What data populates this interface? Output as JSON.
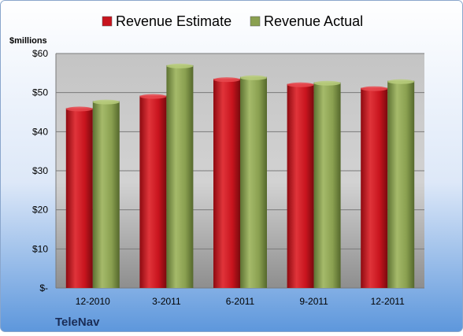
{
  "chart_data": {
    "type": "bar",
    "title": "",
    "ylabel": "$millions",
    "xlabel": "",
    "company": "TeleNav",
    "categories": [
      "12-2010",
      "3-2011",
      "6-2011",
      "9-2011",
      "12-2011"
    ],
    "series": [
      {
        "name": "Revenue Estimate",
        "values": [
          46.0,
          49.2,
          53.5,
          52.2,
          51.2
        ],
        "color": "#c8141e"
      },
      {
        "name": "Revenue Actual",
        "values": [
          47.8,
          57.0,
          54.0,
          52.6,
          53.0
        ],
        "color": "#8aa050"
      }
    ],
    "ylim": [
      0,
      60
    ],
    "yticks": [
      0,
      10,
      20,
      30,
      40,
      50,
      60
    ],
    "ytick_labels": [
      "$-",
      "$10",
      "$20",
      "$30",
      "$40",
      "$50",
      "$60"
    ],
    "grid": true,
    "legend_position": "top"
  }
}
